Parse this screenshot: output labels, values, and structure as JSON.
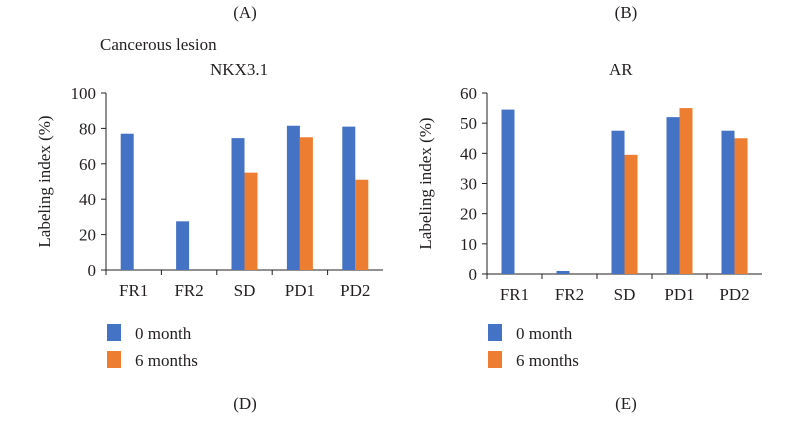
{
  "labels": {
    "panel_top_left": "(A)",
    "panel_top_right": "(B)",
    "panel_bottom_left": "(D)",
    "panel_bottom_right": "(E)"
  },
  "heading": "Cancerous lesion",
  "legend": {
    "series_0": "0 month",
    "series_1": "6 months"
  },
  "colors": {
    "series_0": "#4472c4",
    "series_1": "#ed7d31",
    "axis": "#231f20"
  },
  "chart_data": [
    {
      "type": "bar",
      "title": "NKX3.1",
      "xlabel": "",
      "ylabel": "Labeling index (%)",
      "categories": [
        "FR1",
        "FR2",
        "SD",
        "PD1",
        "PD2"
      ],
      "ylim": [
        0,
        100
      ],
      "yticks": [
        0,
        20,
        40,
        60,
        80,
        100
      ],
      "grid": false,
      "legend_position": "bottom-left",
      "series": [
        {
          "name": "0 month",
          "values": [
            77,
            27.5,
            74.5,
            81.5,
            81
          ]
        },
        {
          "name": "6 months",
          "values": [
            0,
            0,
            55,
            75,
            51
          ]
        }
      ]
    },
    {
      "type": "bar",
      "title": "AR",
      "xlabel": "",
      "ylabel": "Labeling index (%)",
      "categories": [
        "FR1",
        "FR2",
        "SD",
        "PD1",
        "PD2"
      ],
      "ylim": [
        0,
        60
      ],
      "yticks": [
        0,
        10,
        20,
        30,
        40,
        50,
        60
      ],
      "grid": false,
      "legend_position": "bottom-left",
      "series": [
        {
          "name": "0 month",
          "values": [
            54.5,
            1,
            47.5,
            52,
            47.5
          ]
        },
        {
          "name": "6 months",
          "values": [
            0,
            0,
            39.5,
            55,
            45
          ]
        }
      ]
    }
  ]
}
